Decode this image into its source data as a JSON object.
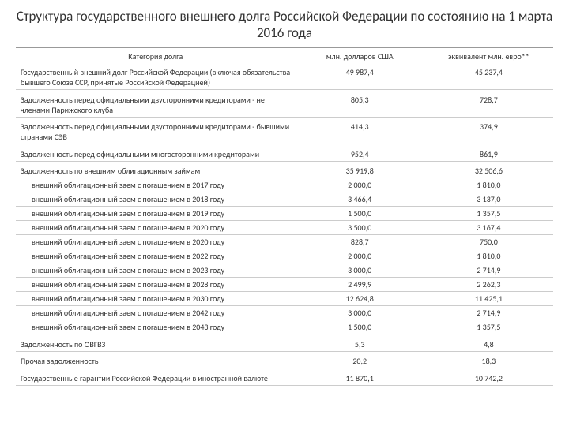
{
  "title": "Структура государственного внешнего долга Российской Федерации по состоянию на 1 марта 2016 года",
  "columns": {
    "category": "Категория долга",
    "usd": "млн. долларов США",
    "eur": "эквивалент млн. евро**"
  },
  "rows": [
    {
      "kind": "main",
      "cat": "Государственный внешний долг Российской Федерации (включая обязательства бывшего Союза ССР, принятые Российской Федерацией)",
      "usd": "49 987,4",
      "eur": "45 237,4"
    },
    {
      "kind": "spacer"
    },
    {
      "kind": "main",
      "cat": "Задолженность перед официальными двусторонними кредиторами - не членами Парижского клуба",
      "usd": "805,3",
      "eur": "728,7"
    },
    {
      "kind": "spacer"
    },
    {
      "kind": "main",
      "cat": "Задолженность перед официальными двусторонними кредиторами - бывшими странами СЭВ",
      "usd": "414,3",
      "eur": "374,9"
    },
    {
      "kind": "spacer"
    },
    {
      "kind": "main",
      "cat": "Задолженность перед официальными многосторонними кредиторами",
      "usd": "952,4",
      "eur": "861,9"
    },
    {
      "kind": "spacer"
    },
    {
      "kind": "main",
      "cat": "Задолженность по внешним облигационным займам",
      "usd": "35 919,8",
      "eur": "32 506,6"
    },
    {
      "kind": "sub",
      "cat": "внешний облигационный заем с погашением в 2017 году",
      "usd": "2 000,0",
      "eur": "1 810,0"
    },
    {
      "kind": "sub",
      "cat": "внешний облигационный заем с погашением в 2018 году",
      "usd": "3 466,4",
      "eur": "3 137,0"
    },
    {
      "kind": "sub",
      "cat": "внешний облигационный заем с погашением в 2019 году",
      "usd": "1 500,0",
      "eur": "1 357,5"
    },
    {
      "kind": "sub",
      "cat": "внешний облигационный заем с погашением в 2020 году",
      "usd": "3 500,0",
      "eur": "3 167,4"
    },
    {
      "kind": "sub",
      "cat": "внешний облигационный заем с погашением в 2020 году",
      "usd": "828,7",
      "eur": "750,0"
    },
    {
      "kind": "sub",
      "cat": "внешний облигационный заем с погашением в 2022 году",
      "usd": "2 000,0",
      "eur": "1 810,0"
    },
    {
      "kind": "sub",
      "cat": "внешний облигационный заем с погашением в 2023 году",
      "usd": "3 000,0",
      "eur": "2 714,9"
    },
    {
      "kind": "sub",
      "cat": "внешний облигационный заем с погашением в 2028 году",
      "usd": "2 499,9",
      "eur": "2 262,3"
    },
    {
      "kind": "sub",
      "cat": "внешний облигационный заем с погашением в 2030 году",
      "usd": "12 624,8",
      "eur": "11 425,1"
    },
    {
      "kind": "sub",
      "cat": "внешний облигационный заем с погашением в 2042 году",
      "usd": "3 000,0",
      "eur": "2 714,9"
    },
    {
      "kind": "sub",
      "cat": "внешний облигационный заем с погашением в 2043 году",
      "usd": "1 500,0",
      "eur": "1 357,5"
    },
    {
      "kind": "spacer"
    },
    {
      "kind": "main",
      "cat": "Задолженность по ОВГВЗ",
      "usd": "5,3",
      "eur": "4,8"
    },
    {
      "kind": "spacer"
    },
    {
      "kind": "main",
      "cat": "Прочая задолженность",
      "usd": "20,2",
      "eur": "18,3"
    },
    {
      "kind": "spacer"
    },
    {
      "kind": "main",
      "cat": "Государственные гарантии Российской Федерации в иностранной валюте",
      "usd": "11 870,1",
      "eur": "10 742,2"
    }
  ]
}
